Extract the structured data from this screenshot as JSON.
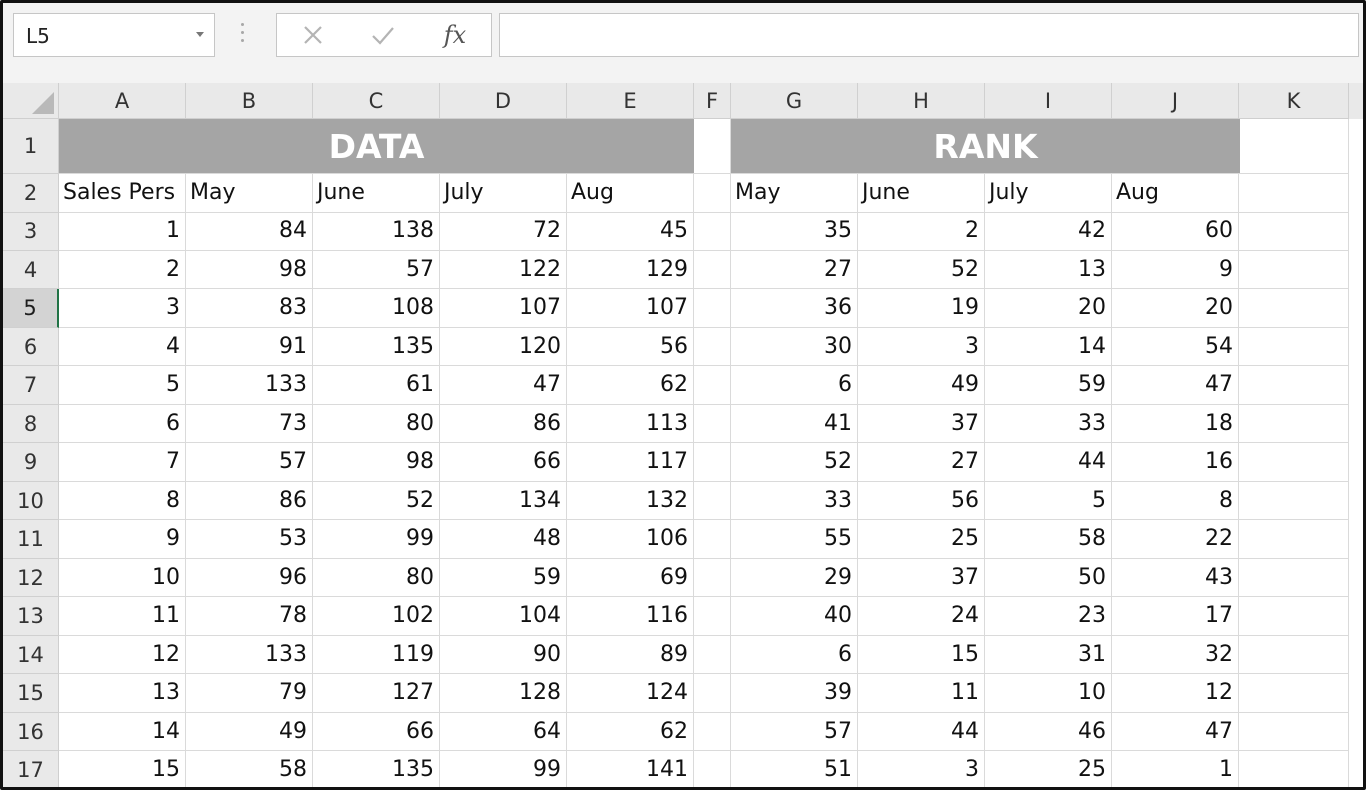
{
  "name_box": {
    "value": "L5"
  },
  "formula_bar": {
    "cancel_icon": "x-icon",
    "enter_icon": "check-icon",
    "fx_label": "fx",
    "formula": ""
  },
  "columns": [
    "A",
    "B",
    "C",
    "D",
    "E",
    "F",
    "G",
    "H",
    "I",
    "J",
    "K"
  ],
  "rows": [
    "1",
    "2",
    "3",
    "4",
    "5",
    "6",
    "7",
    "8",
    "9",
    "10",
    "11",
    "12",
    "13",
    "14",
    "15",
    "16",
    "17"
  ],
  "selected_row": "5",
  "headers": {
    "data_title": "DATA",
    "rank_title": "RANK",
    "row2": [
      "Sales Pers",
      "May",
      "June",
      "July",
      "Aug",
      "",
      "May",
      "June",
      "July",
      "Aug"
    ]
  },
  "data_rows": [
    {
      "sp": "1",
      "may": "84",
      "june": "138",
      "july": "72",
      "aug": "45",
      "rmay": "35",
      "rjune": "2",
      "rjuly": "42",
      "raug": "60"
    },
    {
      "sp": "2",
      "may": "98",
      "june": "57",
      "july": "122",
      "aug": "129",
      "rmay": "27",
      "rjune": "52",
      "rjuly": "13",
      "raug": "9"
    },
    {
      "sp": "3",
      "may": "83",
      "june": "108",
      "july": "107",
      "aug": "107",
      "rmay": "36",
      "rjune": "19",
      "rjuly": "20",
      "raug": "20"
    },
    {
      "sp": "4",
      "may": "91",
      "june": "135",
      "july": "120",
      "aug": "56",
      "rmay": "30",
      "rjune": "3",
      "rjuly": "14",
      "raug": "54"
    },
    {
      "sp": "5",
      "may": "133",
      "june": "61",
      "july": "47",
      "aug": "62",
      "rmay": "6",
      "rjune": "49",
      "rjuly": "59",
      "raug": "47"
    },
    {
      "sp": "6",
      "may": "73",
      "june": "80",
      "july": "86",
      "aug": "113",
      "rmay": "41",
      "rjune": "37",
      "rjuly": "33",
      "raug": "18"
    },
    {
      "sp": "7",
      "may": "57",
      "june": "98",
      "july": "66",
      "aug": "117",
      "rmay": "52",
      "rjune": "27",
      "rjuly": "44",
      "raug": "16"
    },
    {
      "sp": "8",
      "may": "86",
      "june": "52",
      "july": "134",
      "aug": "132",
      "rmay": "33",
      "rjune": "56",
      "rjuly": "5",
      "raug": "8"
    },
    {
      "sp": "9",
      "may": "53",
      "june": "99",
      "july": "48",
      "aug": "106",
      "rmay": "55",
      "rjune": "25",
      "rjuly": "58",
      "raug": "22"
    },
    {
      "sp": "10",
      "may": "96",
      "june": "80",
      "july": "59",
      "aug": "69",
      "rmay": "29",
      "rjune": "37",
      "rjuly": "50",
      "raug": "43"
    },
    {
      "sp": "11",
      "may": "78",
      "june": "102",
      "july": "104",
      "aug": "116",
      "rmay": "40",
      "rjune": "24",
      "rjuly": "23",
      "raug": "17"
    },
    {
      "sp": "12",
      "may": "133",
      "june": "119",
      "july": "90",
      "aug": "89",
      "rmay": "6",
      "rjune": "15",
      "rjuly": "31",
      "raug": "32"
    },
    {
      "sp": "13",
      "may": "79",
      "june": "127",
      "july": "128",
      "aug": "124",
      "rmay": "39",
      "rjune": "11",
      "rjuly": "10",
      "raug": "12"
    },
    {
      "sp": "14",
      "may": "49",
      "june": "66",
      "july": "64",
      "aug": "62",
      "rmay": "57",
      "rjune": "44",
      "rjuly": "46",
      "raug": "47"
    },
    {
      "sp": "15",
      "may": "58",
      "june": "135",
      "july": "99",
      "aug": "141",
      "rmay": "51",
      "rjune": "3",
      "rjuly": "25",
      "raug": "1"
    }
  ],
  "colors": {
    "banner": "#a5a5a5",
    "selection_accent": "#217346",
    "gridline": "#dadada"
  }
}
